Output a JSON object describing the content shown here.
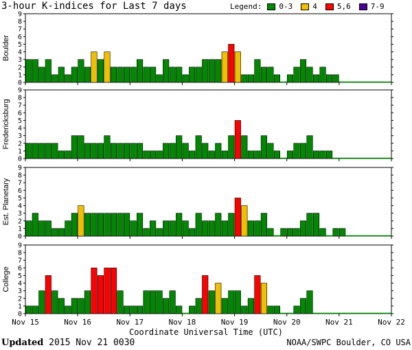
{
  "chart_data": {
    "type": "bar",
    "title": "3-hour K-indices for Last 7 days",
    "legend": {
      "label": "Legend:",
      "items": [
        {
          "label": "0-3",
          "color": "#008800"
        },
        {
          "label": "4",
          "color": "#f0c000"
        },
        {
          "label": "5,6",
          "color": "#ff0000"
        },
        {
          "label": "7-9",
          "color": "#4b0096"
        }
      ]
    },
    "xlabel": "Coordinate Universal Time (UTC)",
    "x_tick_labels": [
      "Nov 15",
      "Nov 16",
      "Nov 17",
      "Nov 18",
      "Nov 19",
      "Nov 20",
      "Nov 21",
      "Nov 22"
    ],
    "y_ticks": [
      "0",
      "1",
      "2",
      "3",
      "4",
      "5",
      "6",
      "7",
      "8",
      "9"
    ],
    "ylim": [
      0,
      9
    ],
    "panels": [
      {
        "name": "Boulder",
        "values": [
          3,
          3,
          2,
          3,
          1,
          2,
          1,
          2,
          3,
          2,
          4,
          3,
          4,
          2,
          2,
          2,
          2,
          3,
          2,
          2,
          1,
          3,
          2,
          2,
          1,
          2,
          2,
          3,
          3,
          3,
          4,
          5,
          4,
          1,
          1,
          3,
          2,
          2,
          1,
          0,
          1,
          2,
          3,
          2,
          1,
          2,
          1,
          1
        ]
      },
      {
        "name": "Fredericksburg",
        "values": [
          2,
          2,
          2,
          2,
          2,
          1,
          1,
          3,
          3,
          2,
          2,
          2,
          3,
          2,
          2,
          2,
          2,
          2,
          1,
          1,
          1,
          2,
          2,
          3,
          2,
          1,
          3,
          2,
          1,
          2,
          1,
          3,
          5,
          3,
          1,
          1,
          3,
          2,
          1,
          0,
          1,
          2,
          2,
          3,
          1,
          1,
          1,
          0
        ]
      },
      {
        "name": "Est. Planetary",
        "values": [
          2,
          3,
          2,
          2,
          1,
          1,
          2,
          3,
          4,
          3,
          3,
          3,
          3,
          3,
          3,
          3,
          2,
          3,
          1,
          2,
          1,
          2,
          2,
          3,
          2,
          1,
          3,
          2,
          2,
          3,
          2,
          3,
          5,
          4,
          2,
          2,
          3,
          1,
          0,
          1,
          1,
          1,
          2,
          3,
          3,
          1,
          0,
          1,
          1
        ]
      },
      {
        "name": "College",
        "values": [
          1,
          1,
          3,
          5,
          3,
          2,
          1,
          2,
          2,
          3,
          6,
          5,
          6,
          6,
          3,
          1,
          1,
          1,
          3,
          3,
          3,
          2,
          3,
          1,
          0,
          1,
          2,
          5,
          3,
          4,
          2,
          3,
          3,
          1,
          2,
          5,
          4,
          1,
          1,
          0,
          0,
          1,
          2,
          3,
          0,
          0,
          0,
          0
        ]
      }
    ],
    "footer": {
      "updated_label": "Updated",
      "updated_value": "2015 Nov 21 0030",
      "source": "NOAA/SWPC Boulder, CO USA"
    }
  }
}
